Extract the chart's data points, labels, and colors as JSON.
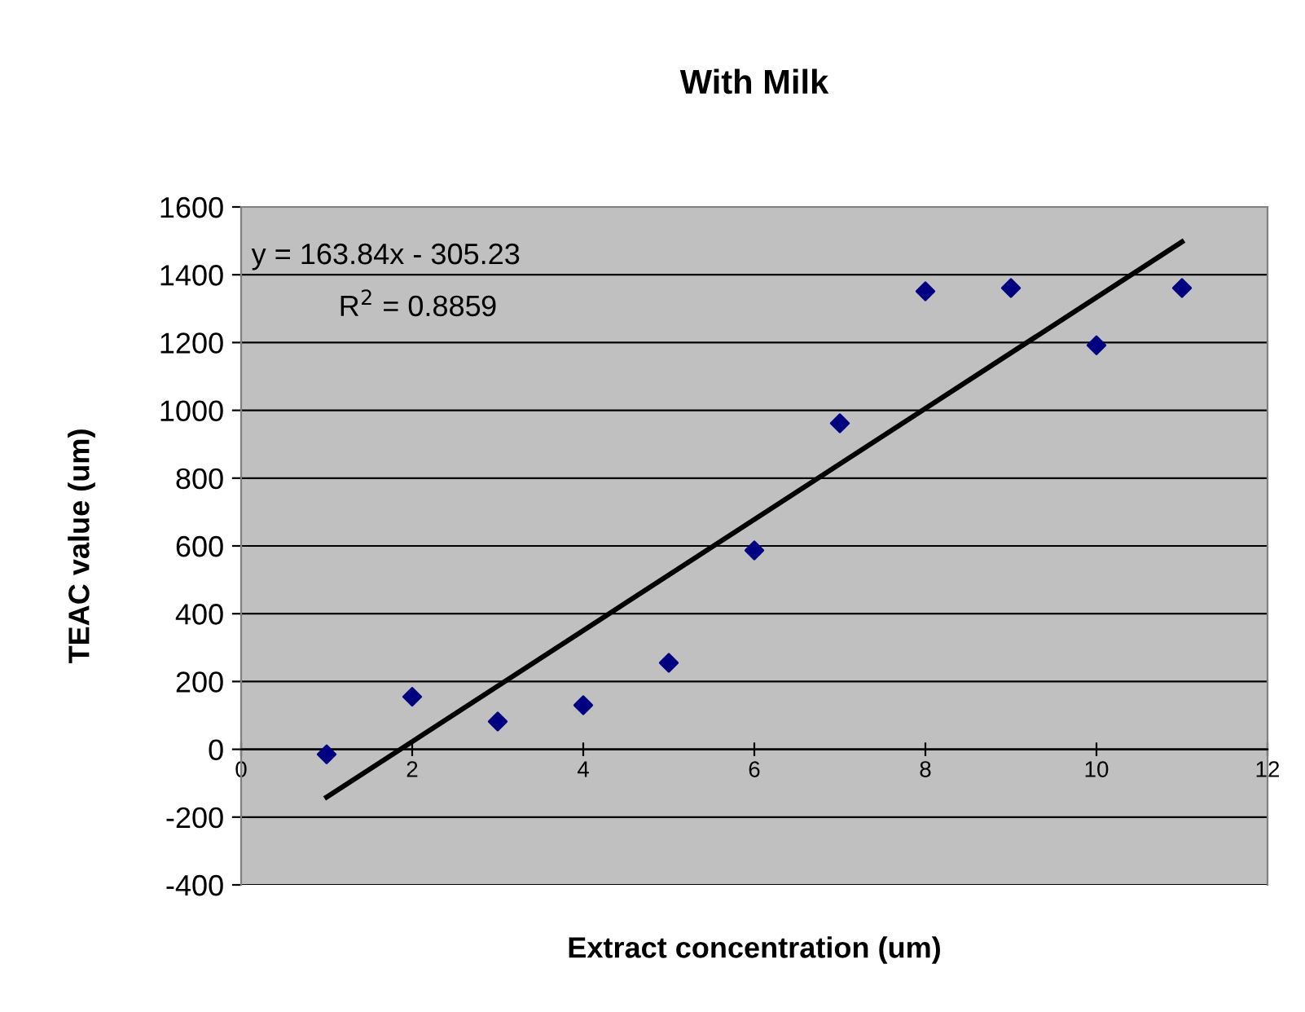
{
  "chart_data": {
    "type": "scatter",
    "title": "With Milk",
    "xlabel": "Extract concentration (um)",
    "ylabel": "TEAC value (um)",
    "x": [
      1,
      2,
      3,
      4,
      5,
      6,
      7,
      8,
      9,
      10,
      11
    ],
    "series": [
      {
        "color": "#000080",
        "marker": "diamond",
        "values": [
          -15,
          155,
          82,
          130,
          255,
          587,
          962,
          1351,
          1361,
          1192,
          1361
        ]
      },
      {
        "type": "line",
        "color": "#000000",
        "x": [
          1,
          11
        ],
        "values": [
          -141,
          1497
        ]
      }
    ],
    "xlim": [
      0,
      12
    ],
    "xticks": [
      0,
      2,
      4,
      6,
      8,
      10,
      12
    ],
    "ylim": [
      -400,
      1600
    ],
    "yticks": [
      -400,
      -200,
      0,
      200,
      400,
      600,
      800,
      1000,
      1200,
      1400,
      1600
    ],
    "grid": "y",
    "legend": false,
    "annotations": [
      "y = 163.84x - 305.23",
      "R$^{2}$ = 0.8859"
    ]
  }
}
